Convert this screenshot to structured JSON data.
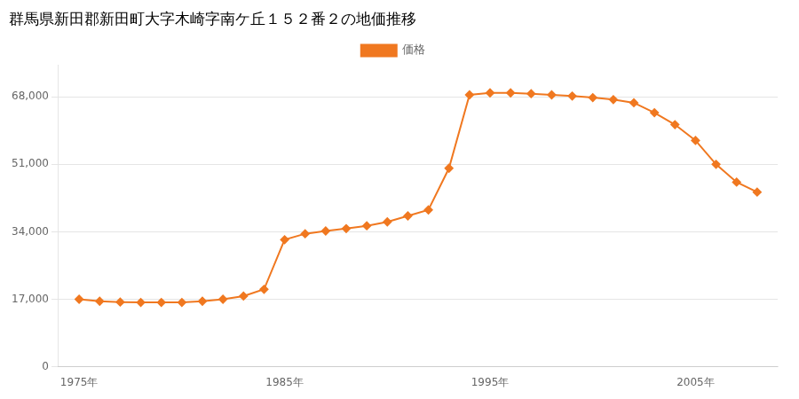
{
  "chart_data": {
    "type": "line",
    "title": "群馬県新田郡新田町大字木崎字南ケ丘１５２番２の地価推移",
    "x": [
      1975,
      1976,
      1977,
      1978,
      1979,
      1980,
      1981,
      1982,
      1983,
      1984,
      1985,
      1986,
      1987,
      1988,
      1989,
      1990,
      1991,
      1992,
      1993,
      1994,
      1995,
      1996,
      1997,
      1998,
      1999,
      2000,
      2001,
      2002,
      2003,
      2004,
      2005,
      2006,
      2007,
      2008
    ],
    "series": [
      {
        "name": "価格",
        "color": "#f07820",
        "marker": "diamond",
        "values": [
          17000,
          16500,
          16300,
          16200,
          16200,
          16200,
          16500,
          17000,
          17800,
          19500,
          32000,
          33500,
          34200,
          34800,
          35500,
          36500,
          38000,
          39500,
          50000,
          68500,
          69000,
          69000,
          68800,
          68500,
          68200,
          67800,
          67300,
          66500,
          64000,
          61000,
          57000,
          51000,
          46500,
          44000
        ]
      }
    ],
    "xlim": [
      1974,
      2009
    ],
    "xticks": [
      {
        "value": 1975,
        "label": "1975年"
      },
      {
        "value": 1985,
        "label": "1985年"
      },
      {
        "value": 1995,
        "label": "1995年"
      },
      {
        "value": 2005,
        "label": "2005年"
      }
    ],
    "ylim": [
      0,
      76000
    ],
    "yticks": [
      0,
      {
        "value": 17000,
        "label": "17,000"
      },
      {
        "value": 34000,
        "label": "34,000"
      },
      {
        "value": 51000,
        "label": "51,000"
      },
      {
        "value": 68000,
        "label": "68,000"
      }
    ],
    "grid": "y",
    "legend": "top"
  }
}
